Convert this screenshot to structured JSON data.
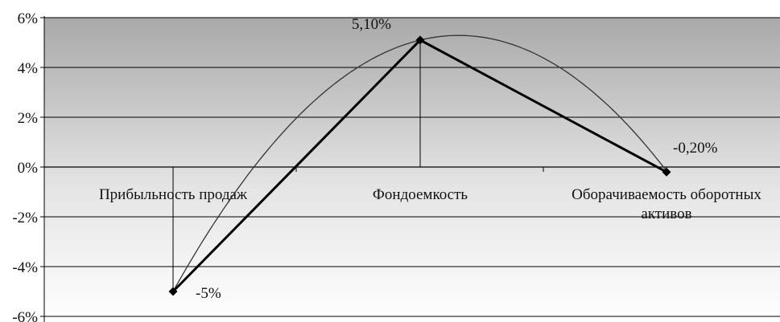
{
  "chart_data": {
    "type": "line",
    "title": "",
    "xlabel": "",
    "ylabel": "",
    "ylim": [
      -6,
      6
    ],
    "yticks": [
      6,
      4,
      2,
      0,
      -2,
      -4,
      -6
    ],
    "ytick_labels": [
      "6%",
      "4%",
      "2%",
      "0%",
      "-2%",
      "-4%",
      "-6%"
    ],
    "categories": [
      "Прибыльность продаж",
      "Фондоемкость",
      "Оборачиваемость оборотных активов"
    ],
    "category_label_lines": [
      [
        "Прибыльность продаж"
      ],
      [
        "Фондоемкость"
      ],
      [
        "Оборачиваемость оборотных",
        "активов"
      ]
    ],
    "series": [
      {
        "values": [
          -5,
          5.1,
          -0.2
        ],
        "data_labels": [
          "-5%",
          "5,10%",
          "-0,20%"
        ],
        "color": "#000000",
        "marker": "diamond"
      }
    ],
    "trendline": {
      "type": "polynomial",
      "degree": 2,
      "color": "#333333"
    },
    "grid": true,
    "legend": "none",
    "plot_background": "gradient-gray-to-white"
  }
}
